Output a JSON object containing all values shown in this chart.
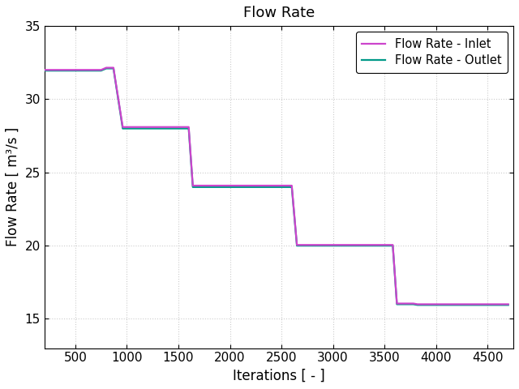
{
  "title": "Flow Rate",
  "xlabel": "Iterations [ - ]",
  "ylabel": "Flow Rate [ m³/s ]",
  "xlim": [
    200,
    4750
  ],
  "ylim": [
    13,
    35
  ],
  "xticks": [
    500,
    1000,
    1500,
    2000,
    2500,
    3000,
    3500,
    4000,
    4500
  ],
  "yticks": [
    15,
    20,
    25,
    30,
    35
  ],
  "inlet_color": "#cc44cc",
  "outlet_color": "#009988",
  "inlet_linewidth": 1.6,
  "outlet_linewidth": 1.6,
  "inlet_label": "Flow Rate - Inlet",
  "outlet_label": "Flow Rate - Outlet",
  "inlet_x": [
    200,
    750,
    800,
    870,
    960,
    1600,
    1640,
    1720,
    2600,
    2650,
    2700,
    3580,
    3620,
    3780,
    3820,
    4700
  ],
  "inlet_y": [
    32.0,
    32.0,
    32.15,
    32.15,
    28.1,
    28.1,
    24.1,
    24.1,
    24.1,
    20.05,
    20.05,
    20.05,
    16.05,
    16.05,
    16.0,
    16.0
  ],
  "outlet_x": [
    200,
    750,
    800,
    870,
    960,
    1600,
    1640,
    1720,
    2600,
    2650,
    2700,
    3580,
    3620,
    3780,
    3820,
    4700
  ],
  "outlet_y": [
    31.95,
    31.95,
    32.1,
    32.1,
    28.0,
    28.0,
    24.0,
    24.0,
    24.0,
    20.0,
    20.0,
    20.0,
    16.0,
    16.0,
    15.95,
    15.95
  ],
  "background_color": "#ffffff",
  "grid_color": "#cccccc",
  "title_fontsize": 13,
  "label_fontsize": 12,
  "tick_fontsize": 11,
  "legend_fontsize": 10.5
}
